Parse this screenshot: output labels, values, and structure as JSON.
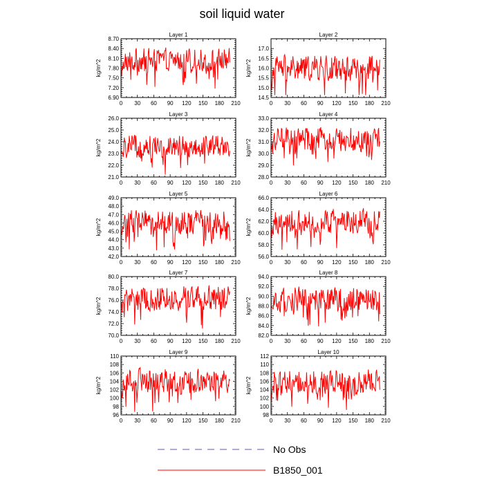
{
  "title": "soil liquid water",
  "colors": {
    "model": "#ff0000",
    "obs": "#5a5ab8"
  },
  "legend": [
    {
      "label": "No Obs",
      "style": "dashed",
      "color": "#5a5ab8"
    },
    {
      "label": "B1850_001",
      "style": "solid",
      "color": "#ff0000"
    }
  ],
  "chart_data": [
    {
      "type": "line",
      "title": "Layer 1",
      "ylabel": "kg/m^2",
      "xlim": [
        0,
        210
      ],
      "xticks": [
        0,
        30,
        60,
        90,
        120,
        150,
        180,
        210
      ],
      "ylim": [
        6.9,
        8.7
      ],
      "yticks": [
        "6.90",
        "7.20",
        "7.50",
        "7.80",
        "8.10",
        "8.40",
        "8.70"
      ],
      "series": [
        {
          "name": "B1850_001",
          "n": 200,
          "mean": 8.05,
          "amp": 0.45
        }
      ]
    },
    {
      "type": "line",
      "title": "Layer 2",
      "ylabel": "kg/m^2",
      "xlim": [
        0,
        210
      ],
      "xticks": [
        0,
        30,
        60,
        90,
        120,
        150,
        180,
        210
      ],
      "ylim": [
        14.5,
        17.5
      ],
      "yticks": [
        "14.5",
        "15.0",
        "15.5",
        "16.0",
        "16.5",
        "17.0"
      ],
      "series": [
        {
          "name": "B1850_001",
          "n": 200,
          "mean": 16.0,
          "amp": 0.85
        }
      ]
    },
    {
      "type": "line",
      "title": "Layer 3",
      "ylabel": "kg/m^2",
      "xlim": [
        0,
        210
      ],
      "xticks": [
        0,
        30,
        60,
        90,
        120,
        150,
        180,
        210
      ],
      "ylim": [
        21.0,
        26.0
      ],
      "yticks": [
        "21.0",
        "22.0",
        "23.0",
        "24.0",
        "25.0",
        "26.0"
      ],
      "series": [
        {
          "name": "B1850_001",
          "n": 200,
          "mean": 23.7,
          "amp": 1.2
        }
      ]
    },
    {
      "type": "line",
      "title": "Layer 4",
      "ylabel": "kg/m^2",
      "xlim": [
        0,
        210
      ],
      "xticks": [
        0,
        30,
        60,
        90,
        120,
        150,
        180,
        210
      ],
      "ylim": [
        28.0,
        33.0
      ],
      "yticks": [
        "28.0",
        "29.0",
        "30.0",
        "31.0",
        "32.0",
        "33.0"
      ],
      "series": [
        {
          "name": "B1850_001",
          "n": 200,
          "mean": 31.2,
          "amp": 1.3
        }
      ]
    },
    {
      "type": "line",
      "title": "Layer 5",
      "ylabel": "kg/m^2",
      "xlim": [
        0,
        210
      ],
      "xticks": [
        0,
        30,
        60,
        90,
        120,
        150,
        180,
        210
      ],
      "ylim": [
        42.0,
        49.0
      ],
      "yticks": [
        "42.0",
        "43.0",
        "44.0",
        "45.0",
        "46.0",
        "47.0",
        "48.0",
        "49.0"
      ],
      "series": [
        {
          "name": "B1850_001",
          "n": 200,
          "mean": 46.2,
          "amp": 1.8
        }
      ]
    },
    {
      "type": "line",
      "title": "Layer 6",
      "ylabel": "kg/m^2",
      "xlim": [
        0,
        210
      ],
      "xticks": [
        0,
        30,
        60,
        90,
        120,
        150,
        180,
        210
      ],
      "ylim": [
        56.0,
        66.0
      ],
      "yticks": [
        "56.0",
        "58.0",
        "60.0",
        "62.0",
        "64.0",
        "66.0"
      ],
      "series": [
        {
          "name": "B1850_001",
          "n": 200,
          "mean": 62.0,
          "amp": 2.6
        }
      ]
    },
    {
      "type": "line",
      "title": "Layer 7",
      "ylabel": "kg/m^2",
      "xlim": [
        0,
        210
      ],
      "xticks": [
        0,
        30,
        60,
        90,
        120,
        150,
        180,
        210
      ],
      "ylim": [
        70.0,
        80.0
      ],
      "yticks": [
        "70.0",
        "72.0",
        "74.0",
        "76.0",
        "78.0",
        "80.0"
      ],
      "series": [
        {
          "name": "B1850_001",
          "n": 200,
          "mean": 76.3,
          "amp": 2.7
        }
      ]
    },
    {
      "type": "line",
      "title": "Layer 8",
      "ylabel": "kg/m^2",
      "xlim": [
        0,
        210
      ],
      "xticks": [
        0,
        30,
        60,
        90,
        120,
        150,
        180,
        210
      ],
      "ylim": [
        82.0,
        94.0
      ],
      "yticks": [
        "82.0",
        "84.0",
        "86.0",
        "88.0",
        "90.0",
        "92.0",
        "94.0"
      ],
      "series": [
        {
          "name": "B1850_001",
          "n": 200,
          "mean": 89.3,
          "amp": 3.2
        }
      ]
    },
    {
      "type": "line",
      "title": "Layer 9",
      "ylabel": "kg/m^2",
      "xlim": [
        0,
        210
      ],
      "xticks": [
        0,
        30,
        60,
        90,
        120,
        150,
        180,
        210
      ],
      "ylim": [
        96,
        110
      ],
      "yticks": [
        "96",
        "98",
        "100",
        "102",
        "104",
        "106",
        "108",
        "110"
      ],
      "series": [
        {
          "name": "B1850_001",
          "n": 200,
          "mean": 104.2,
          "amp": 3.8
        }
      ]
    },
    {
      "type": "line",
      "title": "Layer 10",
      "ylabel": "kg/m^2",
      "xlim": [
        0,
        210
      ],
      "xticks": [
        0,
        30,
        60,
        90,
        120,
        150,
        180,
        210
      ],
      "ylim": [
        98,
        112
      ],
      "yticks": [
        "98",
        "100",
        "102",
        "104",
        "106",
        "108",
        "110",
        "112"
      ],
      "series": [
        {
          "name": "B1850_001",
          "n": 200,
          "mean": 106.0,
          "amp": 3.7
        }
      ]
    }
  ]
}
